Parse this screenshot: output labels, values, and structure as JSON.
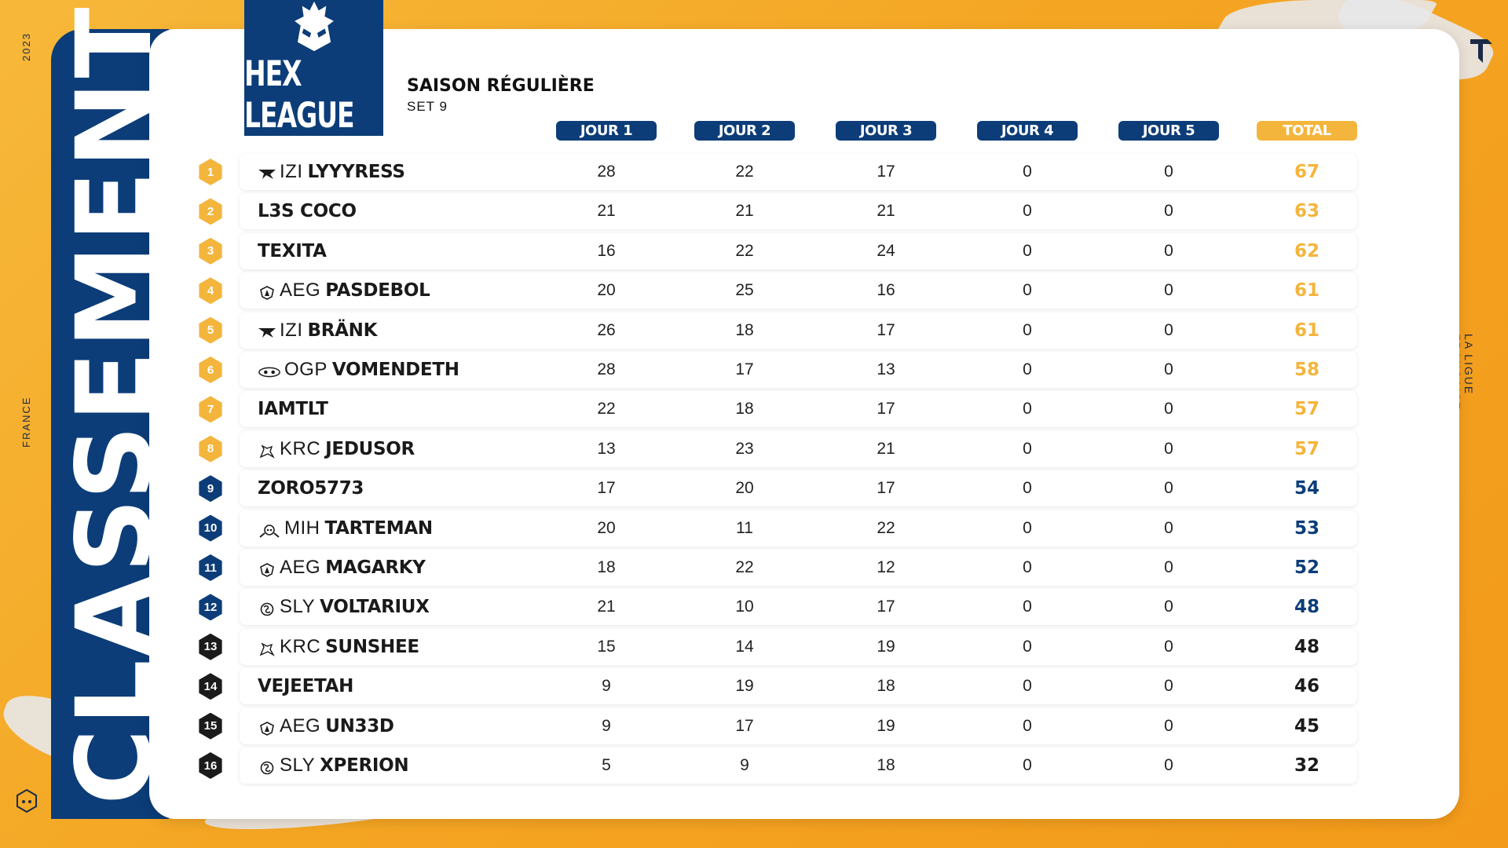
{
  "side": {
    "year": "2023",
    "country": "FRANCE",
    "tagline": "LA LIGUE FRANÇAISE DE TFT",
    "vertical_title": "CLASSEMENT"
  },
  "logo": {
    "text": "HEX LEAGUE"
  },
  "season": {
    "title": "SAISON RÉGULIÈRE",
    "set": "SET 9"
  },
  "columns": [
    "JOUR 1",
    "JOUR 2",
    "JOUR 3",
    "JOUR 4",
    "JOUR 5",
    "TOTAL"
  ],
  "colors": {
    "navy": "#0c3d78",
    "gold": "#f4b53d",
    "dark": "#1b1b1b",
    "orange_bg": "#f4a623"
  },
  "rows": [
    {
      "rank": "1",
      "team": "IZI",
      "team_icon": "izi-icon",
      "player": "LYYYRESS",
      "scores": [
        "28",
        "22",
        "17",
        "0",
        "0"
      ],
      "total": "67"
    },
    {
      "rank": "2",
      "team": "",
      "team_icon": "",
      "player": "L3S COCO",
      "scores": [
        "21",
        "21",
        "21",
        "0",
        "0"
      ],
      "total": "63"
    },
    {
      "rank": "3",
      "team": "",
      "team_icon": "",
      "player": "TEXITA",
      "scores": [
        "16",
        "22",
        "24",
        "0",
        "0"
      ],
      "total": "62"
    },
    {
      "rank": "4",
      "team": "AEG",
      "team_icon": "aeg-icon",
      "player": "PASDEBOL",
      "scores": [
        "20",
        "25",
        "16",
        "0",
        "0"
      ],
      "total": "61"
    },
    {
      "rank": "5",
      "team": "IZI",
      "team_icon": "izi-icon",
      "player": "BRÄNK",
      "scores": [
        "26",
        "18",
        "17",
        "0",
        "0"
      ],
      "total": "61"
    },
    {
      "rank": "6",
      "team": "OGP",
      "team_icon": "ogp-icon",
      "player": "VOMENDETH",
      "scores": [
        "28",
        "17",
        "13",
        "0",
        "0"
      ],
      "total": "58"
    },
    {
      "rank": "7",
      "team": "",
      "team_icon": "",
      "player": "IAMTLT",
      "scores": [
        "22",
        "18",
        "17",
        "0",
        "0"
      ],
      "total": "57"
    },
    {
      "rank": "8",
      "team": "KRC",
      "team_icon": "krc-icon",
      "player": "JEDUSOR",
      "scores": [
        "13",
        "23",
        "21",
        "0",
        "0"
      ],
      "total": "57"
    },
    {
      "rank": "9",
      "team": "",
      "team_icon": "",
      "player": "ZORO5773",
      "scores": [
        "17",
        "20",
        "17",
        "0",
        "0"
      ],
      "total": "54"
    },
    {
      "rank": "10",
      "team": "MIH",
      "team_icon": "mih-icon",
      "player": "TARTEMAN",
      "scores": [
        "20",
        "11",
        "22",
        "0",
        "0"
      ],
      "total": "53"
    },
    {
      "rank": "11",
      "team": "AEG",
      "team_icon": "aeg-icon",
      "player": "MAGARKY",
      "scores": [
        "18",
        "22",
        "12",
        "0",
        "0"
      ],
      "total": "52"
    },
    {
      "rank": "12",
      "team": "SLY",
      "team_icon": "sly-icon",
      "player": "VOLTARIUX",
      "scores": [
        "21",
        "10",
        "17",
        "0",
        "0"
      ],
      "total": "48"
    },
    {
      "rank": "13",
      "team": "KRC",
      "team_icon": "krc-icon",
      "player": "SUNSHEE",
      "scores": [
        "15",
        "14",
        "19",
        "0",
        "0"
      ],
      "total": "48"
    },
    {
      "rank": "14",
      "team": "",
      "team_icon": "",
      "player": "VEJEETAH",
      "scores": [
        "9",
        "19",
        "18",
        "0",
        "0"
      ],
      "total": "46"
    },
    {
      "rank": "15",
      "team": "AEG",
      "team_icon": "aeg-icon",
      "player": "UN33D",
      "scores": [
        "9",
        "17",
        "19",
        "0",
        "0"
      ],
      "total": "45"
    },
    {
      "rank": "16",
      "team": "SLY",
      "team_icon": "sly-icon",
      "player": "XPERION",
      "scores": [
        "5",
        "9",
        "18",
        "0",
        "0"
      ],
      "total": "32"
    }
  ]
}
